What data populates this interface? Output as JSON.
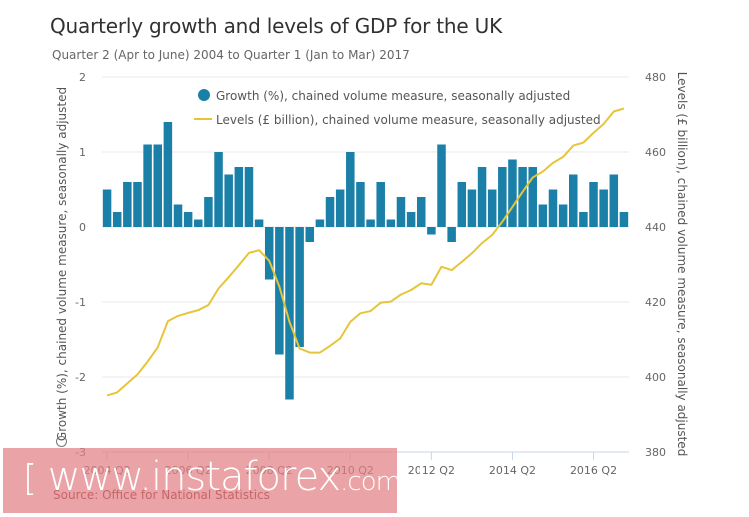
{
  "header": {
    "title": "Quarterly growth and levels of GDP for the UK",
    "subtitle": "Quarter 2 (Apr to June) 2004 to Quarter 1 (Jan to Mar) 2017"
  },
  "source": "Source: Office for National Statistics",
  "watermark": {
    "open_bracket": "[",
    "domain": "www.instaforex",
    "tld": ".com",
    "close_bracket": "]"
  },
  "colors": {
    "bars": "#1b80a8",
    "line": "#e6c53a",
    "grid": "#e8e8e8",
    "axis": "#c9d6e8"
  },
  "chart_data": {
    "type": "bar+line",
    "title": "Quarterly growth and levels of GDP for the UK",
    "subtitle": "Quarter 2 (Apr to June) 2004 to Quarter 1 (Jan to Mar) 2017",
    "x": [
      "2004 Q2",
      "2004 Q3",
      "2004 Q4",
      "2005 Q1",
      "2005 Q2",
      "2005 Q3",
      "2005 Q4",
      "2006 Q1",
      "2006 Q2",
      "2006 Q3",
      "2006 Q4",
      "2007 Q1",
      "2007 Q2",
      "2007 Q3",
      "2007 Q4",
      "2008 Q1",
      "2008 Q2",
      "2008 Q3",
      "2008 Q4",
      "2009 Q1",
      "2009 Q2",
      "2009 Q3",
      "2009 Q4",
      "2010 Q1",
      "2010 Q2",
      "2010 Q3",
      "2010 Q4",
      "2011 Q1",
      "2011 Q2",
      "2011 Q3",
      "2011 Q4",
      "2012 Q1",
      "2012 Q2",
      "2012 Q3",
      "2012 Q4",
      "2013 Q1",
      "2013 Q2",
      "2013 Q3",
      "2013 Q4",
      "2014 Q1",
      "2014 Q2",
      "2014 Q3",
      "2014 Q4",
      "2015 Q1",
      "2015 Q2",
      "2015 Q3",
      "2015 Q4",
      "2016 Q1",
      "2016 Q2",
      "2016 Q3",
      "2016 Q4",
      "2017 Q1"
    ],
    "x_tick_labels": [
      "2004 Q2",
      "2006 Q2",
      "2008 Q2",
      "2010 Q2",
      "2012 Q2",
      "2014 Q2",
      "2016 Q2"
    ],
    "series": [
      {
        "name": "Growth (%), chained volume measure, seasonally adjusted",
        "type": "bar",
        "axis": "left",
        "values": [
          0.5,
          0.2,
          0.6,
          0.6,
          1.1,
          1.1,
          1.4,
          0.3,
          0.2,
          0.1,
          0.4,
          1.0,
          0.7,
          0.8,
          0.8,
          0.1,
          -0.7,
          -1.7,
          -2.3,
          -1.6,
          -0.2,
          0.1,
          0.4,
          0.5,
          1.0,
          0.6,
          0.1,
          0.6,
          0.1,
          0.4,
          0.2,
          0.4,
          -0.1,
          1.1,
          -0.2,
          0.6,
          0.5,
          0.8,
          0.5,
          0.8,
          0.9,
          0.8,
          0.8,
          0.3,
          0.5,
          0.3,
          0.7,
          0.2,
          0.6,
          0.5,
          0.7,
          0.2
        ]
      },
      {
        "name": "Levels (£ billion), chained volume measure, seasonally adjusted",
        "type": "line",
        "axis": "right",
        "values": [
          395.1,
          395.9,
          398.3,
          400.7,
          404.1,
          407.9,
          414.9,
          416.3,
          417.1,
          417.8,
          419.2,
          423.6,
          426.6,
          429.8,
          433.1,
          433.8,
          431.0,
          424.1,
          414.7,
          407.6,
          406.5,
          406.5,
          408.3,
          410.3,
          414.7,
          417.0,
          417.6,
          419.8,
          420.1,
          422.0,
          423.2,
          425.0,
          424.6,
          429.4,
          428.5,
          430.7,
          433.0,
          435.7,
          437.9,
          441.4,
          445.4,
          449.4,
          453.2,
          454.8,
          457.1,
          458.7,
          461.7,
          462.5,
          465.1,
          467.5,
          470.8,
          471.6
        ]
      }
    ],
    "ylabel": "Growth (%), chained volume measure, seasonally adjusted",
    "ylim": [
      -3,
      2
    ],
    "yticks": [
      "2",
      "1",
      "0",
      "-1",
      "-2",
      "-3"
    ],
    "y2label": "Levels (£ billion), chained volume measure, seasonally adjusted",
    "y2lim": [
      380,
      480
    ],
    "y2ticks": [
      "480",
      "460",
      "440",
      "420",
      "400",
      "380"
    ],
    "grid": true,
    "legend": "top-center"
  }
}
